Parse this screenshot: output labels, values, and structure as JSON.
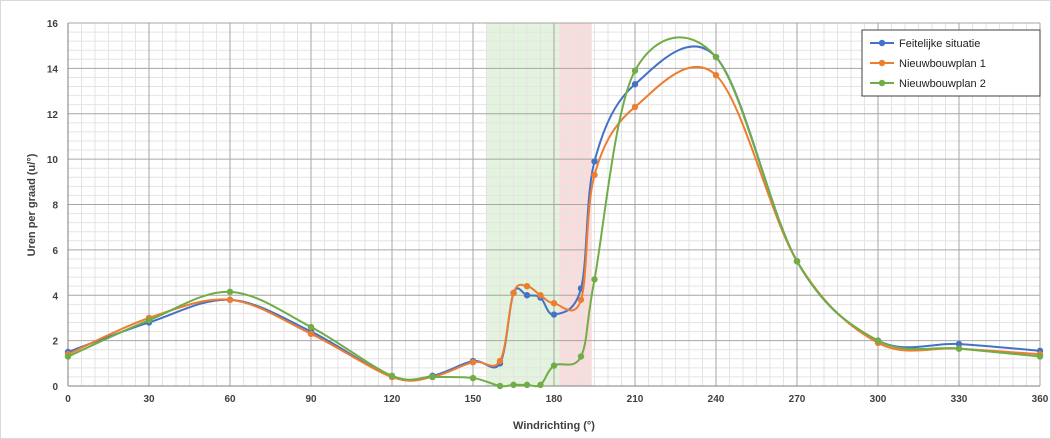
{
  "chart_data": {
    "type": "line",
    "title": "",
    "xlabel": "Windrichting (°)",
    "ylabel": "Uren per graad (u/°)",
    "xlim": [
      0,
      360
    ],
    "ylim": [
      0,
      16
    ],
    "xticks": [
      0,
      30,
      60,
      90,
      120,
      150,
      180,
      210,
      240,
      270,
      300,
      330,
      360
    ],
    "yticks": [
      0,
      2,
      4,
      6,
      8,
      10,
      12,
      14,
      16
    ],
    "grid": true,
    "legend_position": "top-right",
    "shaded_bands": [
      {
        "from": 155,
        "to": 182,
        "color": "#e3f3dd"
      },
      {
        "from": 182,
        "to": 194,
        "color": "#f9dcdc"
      }
    ],
    "series": [
      {
        "name": "Feitelijke situatie",
        "color": "#4472c4",
        "x": [
          0,
          30,
          60,
          90,
          120,
          135,
          150,
          160,
          165,
          170,
          175,
          180,
          190,
          195,
          210,
          240,
          270,
          300,
          330,
          360
        ],
        "y": [
          1.5,
          2.8,
          3.8,
          2.4,
          0.4,
          0.45,
          1.1,
          1.0,
          4.1,
          4.0,
          3.9,
          3.15,
          4.3,
          9.9,
          13.3,
          14.5,
          5.5,
          2.0,
          1.85,
          1.55
        ]
      },
      {
        "name": "Nieuwbouwplan 1",
        "color": "#ed7d31",
        "x": [
          0,
          30,
          60,
          90,
          120,
          135,
          150,
          160,
          165,
          170,
          175,
          180,
          190,
          195,
          210,
          240,
          270,
          300,
          330,
          360
        ],
        "y": [
          1.4,
          3.0,
          3.8,
          2.3,
          0.4,
          0.4,
          1.05,
          1.1,
          4.1,
          4.4,
          4.0,
          3.65,
          3.8,
          9.3,
          12.3,
          13.7,
          5.5,
          1.9,
          1.65,
          1.4
        ]
      },
      {
        "name": "Nieuwbouwplan 2",
        "color": "#70ad47",
        "x": [
          0,
          30,
          60,
          90,
          120,
          135,
          150,
          160,
          165,
          170,
          175,
          180,
          190,
          195,
          210,
          240,
          270,
          300,
          330,
          360
        ],
        "y": [
          1.3,
          2.9,
          4.15,
          2.6,
          0.45,
          0.4,
          0.35,
          0.0,
          0.05,
          0.05,
          0.05,
          0.9,
          1.3,
          4.7,
          13.9,
          14.5,
          5.5,
          2.0,
          1.65,
          1.3
        ]
      }
    ]
  }
}
